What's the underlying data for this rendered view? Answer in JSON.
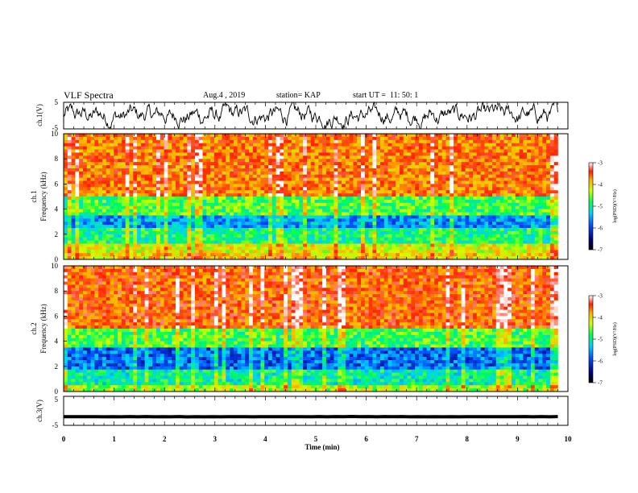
{
  "header": {
    "title": "VLF Spectra",
    "date": "Aug.4 , 2019",
    "station": "station= KAP",
    "start": "start UT =  11: 50: 1"
  },
  "chart_data": [
    {
      "type": "line",
      "panel": "ch1-waveform",
      "ylabel": "ch.1(V)",
      "ylim": [
        -5,
        5
      ],
      "yticks": [
        "5",
        "-5"
      ],
      "xlim": [
        0,
        10
      ],
      "series": [
        {
          "color": "#000000",
          "approx_center_v": 0,
          "approx_amplitude_v": 2.5
        }
      ]
    },
    {
      "type": "heatmap",
      "panel": "ch1-spectrogram",
      "ylabel": "ch.1\nFrequency (kHz)",
      "ylabel_line1": "ch.1",
      "ylabel_line2": "Frequency (kHz)",
      "ylim": [
        0,
        10
      ],
      "yticks": [
        "0",
        "2",
        "4",
        "6",
        "8",
        "10"
      ],
      "xlim": [
        0,
        9.8
      ],
      "colorbar": {
        "label": "log(PSD)(V²/Hz)",
        "range": [
          -7,
          -3
        ],
        "ticks": [
          "-3",
          "-4",
          "-5",
          "-6",
          "-7"
        ]
      },
      "bands": [
        {
          "from_khz": 0,
          "to_khz": 0.6,
          "level": -4.2
        },
        {
          "from_khz": 0.6,
          "to_khz": 1.3,
          "level": -4.4
        },
        {
          "from_khz": 1.3,
          "to_khz": 2.4,
          "level": -5.1
        },
        {
          "from_khz": 2.4,
          "to_khz": 3.6,
          "level": -5.7
        },
        {
          "from_khz": 3.6,
          "to_khz": 5.0,
          "level": -4.9
        },
        {
          "from_khz": 5.0,
          "to_khz": 10.0,
          "level": -3.8
        }
      ]
    },
    {
      "type": "heatmap",
      "panel": "ch2-spectrogram",
      "ylabel": "ch.2\nFrequency (kHz)",
      "ylabel_line1": "ch.2",
      "ylabel_line2": "Frequency (kHz)",
      "ylim": [
        0,
        10
      ],
      "yticks": [
        "0",
        "2",
        "4",
        "6",
        "8",
        "10"
      ],
      "xlim": [
        0,
        9.8
      ],
      "colorbar": {
        "label": "log(PSD)(V²/Hz)",
        "range": [
          -7,
          -3
        ],
        "ticks": [
          "-3",
          "-4",
          "-5",
          "-6",
          "-7"
        ]
      },
      "bands": [
        {
          "from_khz": 0,
          "to_khz": 0.6,
          "level": -4.6
        },
        {
          "from_khz": 0.6,
          "to_khz": 1.8,
          "level": -5.2
        },
        {
          "from_khz": 1.8,
          "to_khz": 3.4,
          "level": -5.9
        },
        {
          "from_khz": 3.4,
          "to_khz": 5.0,
          "level": -4.9
        },
        {
          "from_khz": 5.0,
          "to_khz": 10.0,
          "level": -3.7
        }
      ]
    },
    {
      "type": "line",
      "panel": "ch3-waveform",
      "ylabel": "ch.3(V)",
      "ylim": [
        -5,
        5
      ],
      "yticks": [
        "5",
        "-5"
      ],
      "xlim": [
        0,
        10
      ],
      "xlabel": "Time (min)",
      "xticks": [
        "0",
        "1",
        "2",
        "3",
        "4",
        "5",
        "6",
        "7",
        "8",
        "9",
        "10"
      ],
      "series": [
        {
          "color": "#000000",
          "approx_center_v": -2,
          "approx_amplitude_v": 0.2
        }
      ]
    }
  ]
}
